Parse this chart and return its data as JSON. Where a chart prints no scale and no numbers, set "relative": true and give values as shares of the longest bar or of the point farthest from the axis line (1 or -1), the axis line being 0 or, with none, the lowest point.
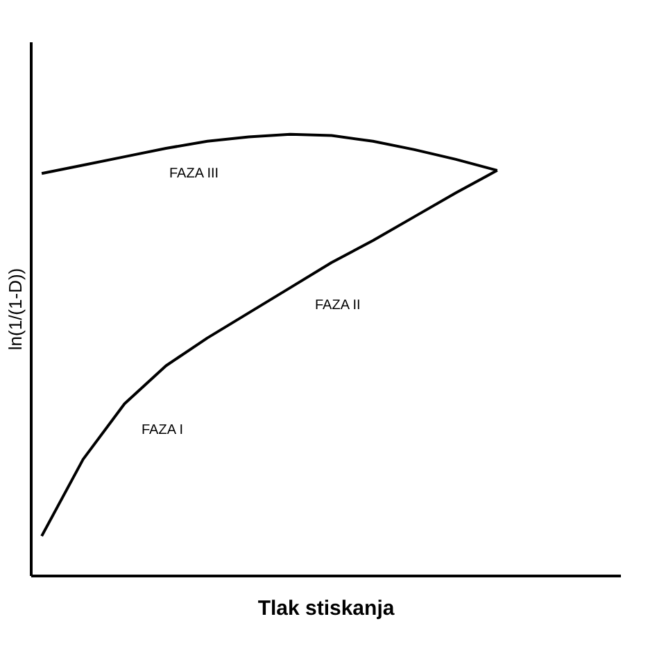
{
  "chart_data": {
    "type": "line",
    "relative": true,
    "xlabel": "Tlak stiskanja",
    "ylabel": "ln(1/(1-D))",
    "marker": "none",
    "line_style": "solid",
    "categories": [
      null,
      null,
      null,
      null,
      null,
      null,
      null,
      null,
      null,
      null,
      null,
      null
    ],
    "series": [
      {
        "color": "#000000",
        "values": [
          0.089,
          0.263,
          0.389,
          0.475,
          0.538,
          0.595,
          0.652,
          0.709,
          0.759,
          0.813,
          0.867,
          0.918
        ]
      },
      {
        "color": "#000000",
        "values": [
          0.911,
          0.93,
          0.949,
          0.968,
          0.984,
          0.994,
          1.0,
          0.997,
          0.984,
          0.965,
          0.943,
          0.918
        ]
      }
    ],
    "annotations": [
      "FAZA III",
      "FAZA II",
      "FAZA I"
    ]
  }
}
